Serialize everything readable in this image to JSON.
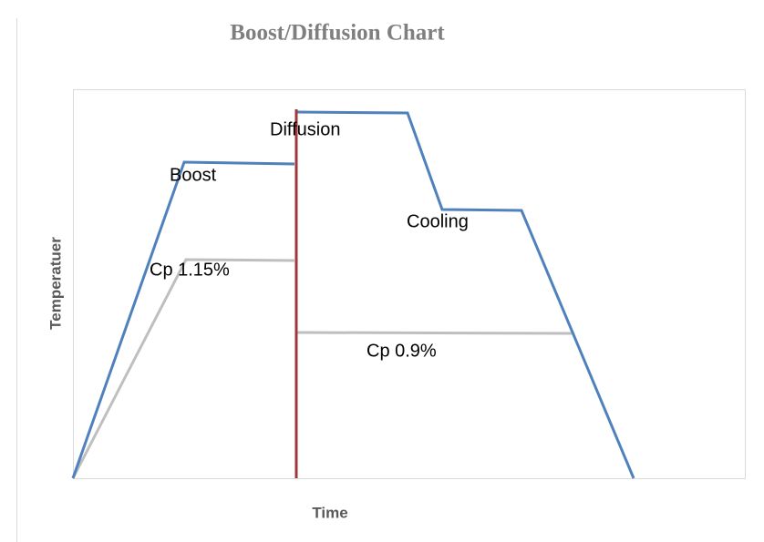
{
  "title": "Boost/Diffusion Chart",
  "axes": {
    "y_label": "Temperatuer",
    "x_label": "Time"
  },
  "labels": {
    "diffusion": "Diffusion",
    "boost": "Boost",
    "cooling": "Cooling",
    "cp_boost": "Cp 1.15%",
    "cp_diffusion": "Cp 0.9%"
  }
}
